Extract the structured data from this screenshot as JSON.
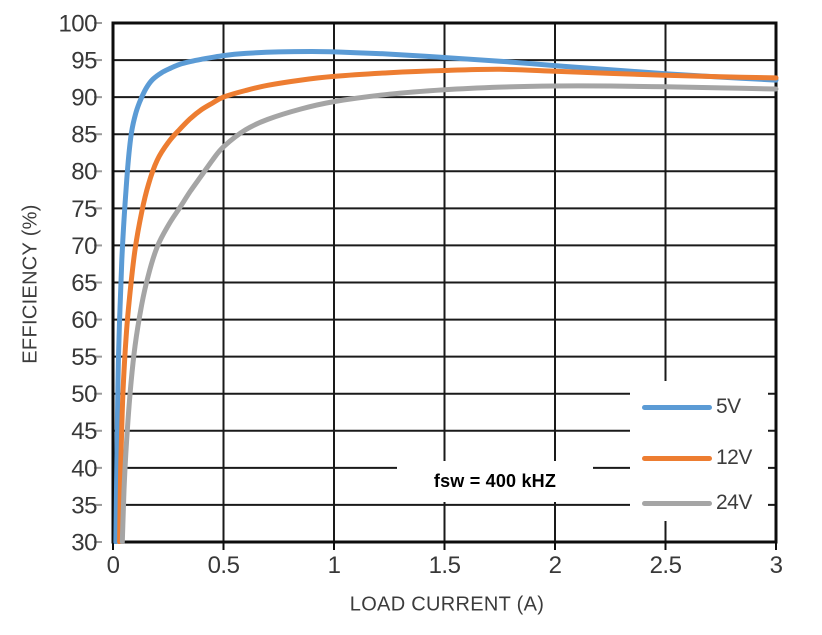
{
  "chart_data": {
    "type": "line",
    "title": "",
    "xlabel": "LOAD CURRENT (A)",
    "ylabel": "EFFICIENCY (%)",
    "xlim": [
      0,
      3
    ],
    "ylim": [
      30,
      100
    ],
    "x_ticks": [
      "0",
      "0.5",
      "1",
      "1.5",
      "2",
      "2.5",
      "3"
    ],
    "x_tick_values": [
      0,
      0.5,
      1,
      1.5,
      2,
      2.5,
      3
    ],
    "y_tick_values": [
      30,
      35,
      40,
      45,
      50,
      55,
      60,
      65,
      70,
      75,
      80,
      85,
      90,
      95,
      100
    ],
    "grid": true,
    "legend_position": "inside-right",
    "annotation": "fsw = 400 kHZ",
    "colors": {
      "grid": "#1a1a1a",
      "border": "#0d0d0d",
      "text": "#3c3c3c",
      "background": "#ffffff"
    },
    "series": [
      {
        "name": "5V",
        "color": "#5B9BD5",
        "points": [
          [
            0.013,
            30
          ],
          [
            0.018,
            42
          ],
          [
            0.025,
            55
          ],
          [
            0.04,
            68
          ],
          [
            0.06,
            78
          ],
          [
            0.08,
            84.5
          ],
          [
            0.1,
            87.5
          ],
          [
            0.12,
            89.3
          ],
          [
            0.15,
            91.2
          ],
          [
            0.18,
            92.4
          ],
          [
            0.22,
            93.3
          ],
          [
            0.26,
            93.9
          ],
          [
            0.3,
            94.4
          ],
          [
            0.35,
            94.8
          ],
          [
            0.4,
            95.1
          ],
          [
            0.5,
            95.6
          ],
          [
            0.6,
            95.9
          ],
          [
            0.75,
            96.1
          ],
          [
            0.9,
            96.15
          ],
          [
            1.0,
            96.1
          ],
          [
            1.1,
            96.0
          ],
          [
            1.25,
            95.8
          ],
          [
            1.5,
            95.35
          ],
          [
            1.75,
            94.85
          ],
          [
            2.0,
            94.25
          ],
          [
            2.25,
            93.7
          ],
          [
            2.5,
            93.15
          ],
          [
            2.75,
            92.7
          ],
          [
            3.0,
            92.3
          ]
        ]
      },
      {
        "name": "12V",
        "color": "#ED7D31",
        "points": [
          [
            0.03,
            30
          ],
          [
            0.035,
            40
          ],
          [
            0.045,
            50
          ],
          [
            0.06,
            58
          ],
          [
            0.08,
            64.5
          ],
          [
            0.1,
            69.5
          ],
          [
            0.13,
            74.5
          ],
          [
            0.16,
            78.2
          ],
          [
            0.2,
            81.5
          ],
          [
            0.25,
            83.9
          ],
          [
            0.3,
            85.6
          ],
          [
            0.35,
            87.1
          ],
          [
            0.4,
            88.3
          ],
          [
            0.45,
            89.2
          ],
          [
            0.5,
            90.0
          ],
          [
            0.6,
            90.9
          ],
          [
            0.7,
            91.6
          ],
          [
            0.85,
            92.3
          ],
          [
            1.0,
            92.8
          ],
          [
            1.25,
            93.3
          ],
          [
            1.5,
            93.6
          ],
          [
            1.75,
            93.75
          ],
          [
            2.0,
            93.5
          ],
          [
            2.25,
            93.2
          ],
          [
            2.5,
            92.95
          ],
          [
            2.75,
            92.75
          ],
          [
            3.0,
            92.6
          ]
        ]
      },
      {
        "name": "24V",
        "color": "#A5A5A5",
        "points": [
          [
            0.042,
            30
          ],
          [
            0.05,
            37
          ],
          [
            0.06,
            43
          ],
          [
            0.08,
            51
          ],
          [
            0.1,
            56.5
          ],
          [
            0.13,
            62
          ],
          [
            0.16,
            66
          ],
          [
            0.2,
            69.8
          ],
          [
            0.25,
            72.7
          ],
          [
            0.3,
            75.0
          ],
          [
            0.35,
            77.3
          ],
          [
            0.4,
            79.4
          ],
          [
            0.45,
            81.5
          ],
          [
            0.5,
            83.3
          ],
          [
            0.6,
            85.6
          ],
          [
            0.7,
            87.0
          ],
          [
            0.85,
            88.4
          ],
          [
            1.0,
            89.4
          ],
          [
            1.25,
            90.4
          ],
          [
            1.5,
            91.0
          ],
          [
            1.75,
            91.35
          ],
          [
            2.0,
            91.5
          ],
          [
            2.25,
            91.5
          ],
          [
            2.5,
            91.4
          ],
          [
            2.75,
            91.25
          ],
          [
            3.0,
            91.1
          ]
        ]
      }
    ]
  },
  "axes": {
    "x_label": "LOAD CURRENT (A)",
    "y_label": "EFFICIENCY (%)"
  },
  "legend": {
    "items": [
      {
        "label": "5V",
        "color": "#5B9BD5"
      },
      {
        "label": "12V",
        "color": "#ED7D31"
      },
      {
        "label": "24V",
        "color": "#A5A5A5"
      }
    ]
  },
  "annotation": {
    "text": "fsw = 400 kHZ"
  }
}
